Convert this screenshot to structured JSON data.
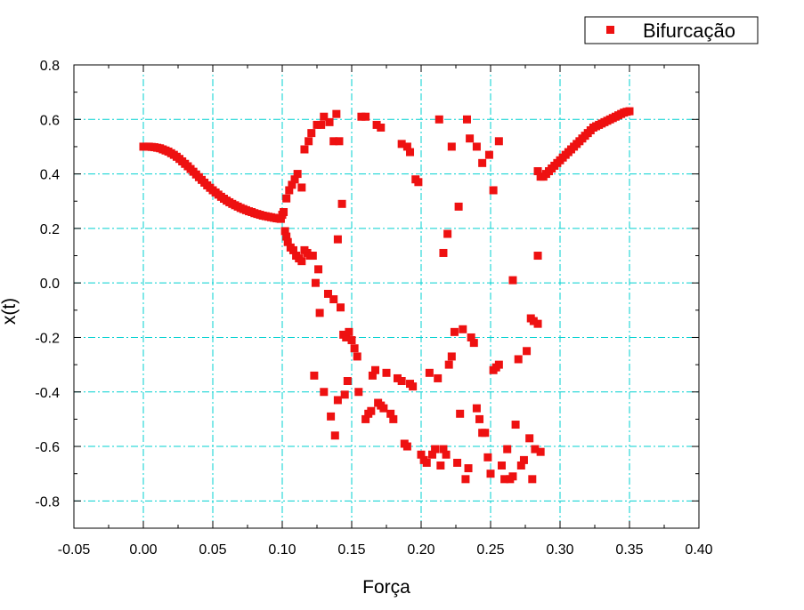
{
  "chart_data": {
    "type": "scatter",
    "xlabel": "Força",
    "ylabel": "x(t)",
    "xlim": [
      -0.05,
      0.4
    ],
    "ylim": [
      -0.9,
      0.8
    ],
    "xticks": [
      -0.05,
      0.0,
      0.05,
      0.1,
      0.15,
      0.2,
      0.25,
      0.3,
      0.35,
      0.4
    ],
    "xtick_labels": [
      "-0.05",
      "0.00",
      "0.05",
      "0.10",
      "0.15",
      "0.20",
      "0.25",
      "0.30",
      "0.35",
      "0.40"
    ],
    "yticks": [
      -0.8,
      -0.6,
      -0.4,
      -0.2,
      0.0,
      0.2,
      0.4,
      0.6,
      0.8
    ],
    "ytick_labels": [
      "-0.8",
      "-0.6",
      "-0.4",
      "-0.2",
      "0.0",
      "0.2",
      "0.4",
      "0.6",
      "0.8"
    ],
    "gridlines_x": [
      0.0,
      0.05,
      0.1,
      0.15,
      0.2,
      0.25,
      0.3,
      0.35
    ],
    "gridlines_y": [
      -0.8,
      -0.6,
      -0.4,
      -0.2,
      0.0,
      0.2,
      0.4,
      0.6
    ],
    "grid": true,
    "grid_color": "#00d0d0",
    "legend_position": "top-right",
    "series": [
      {
        "name": "Bifurcação",
        "color": "#ee1111",
        "marker": "square",
        "points": [
          [
            0.0,
            0.5
          ],
          [
            0.002,
            0.5
          ],
          [
            0.004,
            0.5
          ],
          [
            0.006,
            0.499
          ],
          [
            0.008,
            0.498
          ],
          [
            0.01,
            0.496
          ],
          [
            0.012,
            0.494
          ],
          [
            0.014,
            0.49
          ],
          [
            0.016,
            0.486
          ],
          [
            0.018,
            0.482
          ],
          [
            0.02,
            0.476
          ],
          [
            0.022,
            0.47
          ],
          [
            0.024,
            0.463
          ],
          [
            0.026,
            0.455
          ],
          [
            0.028,
            0.446
          ],
          [
            0.03,
            0.437
          ],
          [
            0.032,
            0.428
          ],
          [
            0.034,
            0.418
          ],
          [
            0.036,
            0.408
          ],
          [
            0.038,
            0.398
          ],
          [
            0.04,
            0.388
          ],
          [
            0.042,
            0.378
          ],
          [
            0.044,
            0.368
          ],
          [
            0.046,
            0.358
          ],
          [
            0.048,
            0.349
          ],
          [
            0.05,
            0.34
          ],
          [
            0.052,
            0.332
          ],
          [
            0.054,
            0.324
          ],
          [
            0.056,
            0.316
          ],
          [
            0.058,
            0.309
          ],
          [
            0.06,
            0.302
          ],
          [
            0.062,
            0.296
          ],
          [
            0.064,
            0.29
          ],
          [
            0.066,
            0.285
          ],
          [
            0.068,
            0.28
          ],
          [
            0.07,
            0.275
          ],
          [
            0.072,
            0.271
          ],
          [
            0.074,
            0.267
          ],
          [
            0.076,
            0.263
          ],
          [
            0.078,
            0.26
          ],
          [
            0.08,
            0.256
          ],
          [
            0.082,
            0.253
          ],
          [
            0.084,
            0.25
          ],
          [
            0.086,
            0.247
          ],
          [
            0.088,
            0.245
          ],
          [
            0.09,
            0.243
          ],
          [
            0.092,
            0.241
          ],
          [
            0.094,
            0.239
          ],
          [
            0.096,
            0.237
          ],
          [
            0.098,
            0.236
          ],
          [
            0.099,
            0.235
          ],
          [
            0.1,
            0.25
          ],
          [
            0.101,
            0.26
          ],
          [
            0.102,
            0.19
          ],
          [
            0.103,
            0.17
          ],
          [
            0.104,
            0.15
          ],
          [
            0.106,
            0.13
          ],
          [
            0.108,
            0.12
          ],
          [
            0.11,
            0.1
          ],
          [
            0.112,
            0.09
          ],
          [
            0.114,
            0.08
          ],
          [
            0.116,
            0.12
          ],
          [
            0.118,
            0.11
          ],
          [
            0.12,
            0.1
          ],
          [
            0.122,
            0.1
          ],
          [
            0.103,
            0.31
          ],
          [
            0.105,
            0.34
          ],
          [
            0.107,
            0.36
          ],
          [
            0.109,
            0.38
          ],
          [
            0.111,
            0.4
          ],
          [
            0.114,
            0.35
          ],
          [
            0.116,
            0.49
          ],
          [
            0.119,
            0.52
          ],
          [
            0.121,
            0.55
          ],
          [
            0.125,
            0.58
          ],
          [
            0.128,
            0.58
          ],
          [
            0.13,
            0.61
          ],
          [
            0.134,
            0.59
          ],
          [
            0.137,
            0.52
          ],
          [
            0.139,
            0.62
          ],
          [
            0.141,
            0.52
          ],
          [
            0.124,
            0.0
          ],
          [
            0.126,
            0.05
          ],
          [
            0.127,
            -0.11
          ],
          [
            0.133,
            -0.04
          ],
          [
            0.137,
            -0.06
          ],
          [
            0.142,
            -0.09
          ],
          [
            0.144,
            -0.19
          ],
          [
            0.146,
            -0.2
          ],
          [
            0.148,
            -0.18
          ],
          [
            0.15,
            -0.21
          ],
          [
            0.152,
            -0.24
          ],
          [
            0.154,
            -0.27
          ],
          [
            0.143,
            0.29
          ],
          [
            0.14,
            0.16
          ],
          [
            0.123,
            -0.34
          ],
          [
            0.13,
            -0.4
          ],
          [
            0.135,
            -0.49
          ],
          [
            0.138,
            -0.56
          ],
          [
            0.14,
            -0.43
          ],
          [
            0.145,
            -0.41
          ],
          [
            0.147,
            -0.36
          ],
          [
            0.155,
            -0.4
          ],
          [
            0.16,
            -0.5
          ],
          [
            0.162,
            -0.48
          ],
          [
            0.164,
            -0.47
          ],
          [
            0.165,
            -0.34
          ],
          [
            0.167,
            -0.32
          ],
          [
            0.169,
            -0.44
          ],
          [
            0.171,
            -0.45
          ],
          [
            0.173,
            -0.46
          ],
          [
            0.175,
            -0.33
          ],
          [
            0.178,
            -0.48
          ],
          [
            0.18,
            -0.5
          ],
          [
            0.183,
            -0.35
          ],
          [
            0.186,
            -0.36
          ],
          [
            0.188,
            -0.59
          ],
          [
            0.19,
            -0.6
          ],
          [
            0.192,
            -0.37
          ],
          [
            0.194,
            -0.38
          ],
          [
            0.196,
            0.38
          ],
          [
            0.198,
            0.37
          ],
          [
            0.19,
            0.5
          ],
          [
            0.192,
            0.48
          ],
          [
            0.186,
            0.51
          ],
          [
            0.171,
            0.57
          ],
          [
            0.168,
            0.58
          ],
          [
            0.16,
            0.61
          ],
          [
            0.157,
            0.61
          ],
          [
            0.2,
            -0.63
          ],
          [
            0.202,
            -0.65
          ],
          [
            0.204,
            -0.66
          ],
          [
            0.206,
            -0.33
          ],
          [
            0.208,
            -0.63
          ],
          [
            0.21,
            -0.61
          ],
          [
            0.212,
            -0.35
          ],
          [
            0.214,
            -0.67
          ],
          [
            0.216,
            -0.61
          ],
          [
            0.218,
            -0.63
          ],
          [
            0.22,
            -0.3
          ],
          [
            0.222,
            -0.27
          ],
          [
            0.224,
            -0.18
          ],
          [
            0.226,
            -0.66
          ],
          [
            0.228,
            -0.48
          ],
          [
            0.23,
            -0.17
          ],
          [
            0.232,
            -0.72
          ],
          [
            0.234,
            -0.68
          ],
          [
            0.236,
            -0.2
          ],
          [
            0.238,
            -0.22
          ],
          [
            0.24,
            -0.46
          ],
          [
            0.242,
            -0.5
          ],
          [
            0.244,
            -0.55
          ],
          [
            0.246,
            -0.55
          ],
          [
            0.248,
            -0.64
          ],
          [
            0.25,
            -0.7
          ],
          [
            0.252,
            -0.32
          ],
          [
            0.254,
            -0.31
          ],
          [
            0.256,
            -0.3
          ],
          [
            0.258,
            -0.67
          ],
          [
            0.26,
            -0.72
          ],
          [
            0.262,
            -0.61
          ],
          [
            0.264,
            -0.72
          ],
          [
            0.266,
            -0.71
          ],
          [
            0.268,
            -0.52
          ],
          [
            0.27,
            -0.28
          ],
          [
            0.272,
            -0.67
          ],
          [
            0.274,
            -0.65
          ],
          [
            0.276,
            -0.25
          ],
          [
            0.278,
            -0.57
          ],
          [
            0.28,
            -0.72
          ],
          [
            0.282,
            -0.61
          ],
          [
            0.284,
            -0.15
          ],
          [
            0.286,
            -0.62
          ],
          [
            0.213,
            0.6
          ],
          [
            0.216,
            0.11
          ],
          [
            0.219,
            0.18
          ],
          [
            0.222,
            0.5
          ],
          [
            0.227,
            0.28
          ],
          [
            0.233,
            0.6
          ],
          [
            0.235,
            0.53
          ],
          [
            0.24,
            0.5
          ],
          [
            0.244,
            0.44
          ],
          [
            0.249,
            0.47
          ],
          [
            0.252,
            0.34
          ],
          [
            0.256,
            0.52
          ],
          [
            0.266,
            0.01
          ],
          [
            0.279,
            -0.13
          ],
          [
            0.281,
            -0.14
          ],
          [
            0.284,
            0.1
          ],
          [
            0.284,
            0.41
          ],
          [
            0.286,
            0.39
          ],
          [
            0.288,
            0.39
          ],
          [
            0.29,
            0.4
          ],
          [
            0.292,
            0.41
          ],
          [
            0.294,
            0.42
          ],
          [
            0.296,
            0.43
          ],
          [
            0.298,
            0.44
          ],
          [
            0.3,
            0.45
          ],
          [
            0.302,
            0.46
          ],
          [
            0.304,
            0.47
          ],
          [
            0.306,
            0.48
          ],
          [
            0.308,
            0.49
          ],
          [
            0.31,
            0.5
          ],
          [
            0.312,
            0.51
          ],
          [
            0.314,
            0.52
          ],
          [
            0.316,
            0.53
          ],
          [
            0.318,
            0.54
          ],
          [
            0.32,
            0.55
          ],
          [
            0.322,
            0.56
          ],
          [
            0.324,
            0.57
          ],
          [
            0.326,
            0.575
          ],
          [
            0.328,
            0.58
          ],
          [
            0.33,
            0.585
          ],
          [
            0.332,
            0.59
          ],
          [
            0.334,
            0.595
          ],
          [
            0.336,
            0.6
          ],
          [
            0.338,
            0.605
          ],
          [
            0.34,
            0.61
          ],
          [
            0.342,
            0.615
          ],
          [
            0.344,
            0.62
          ],
          [
            0.346,
            0.625
          ],
          [
            0.348,
            0.628
          ],
          [
            0.35,
            0.63
          ]
        ]
      }
    ]
  }
}
